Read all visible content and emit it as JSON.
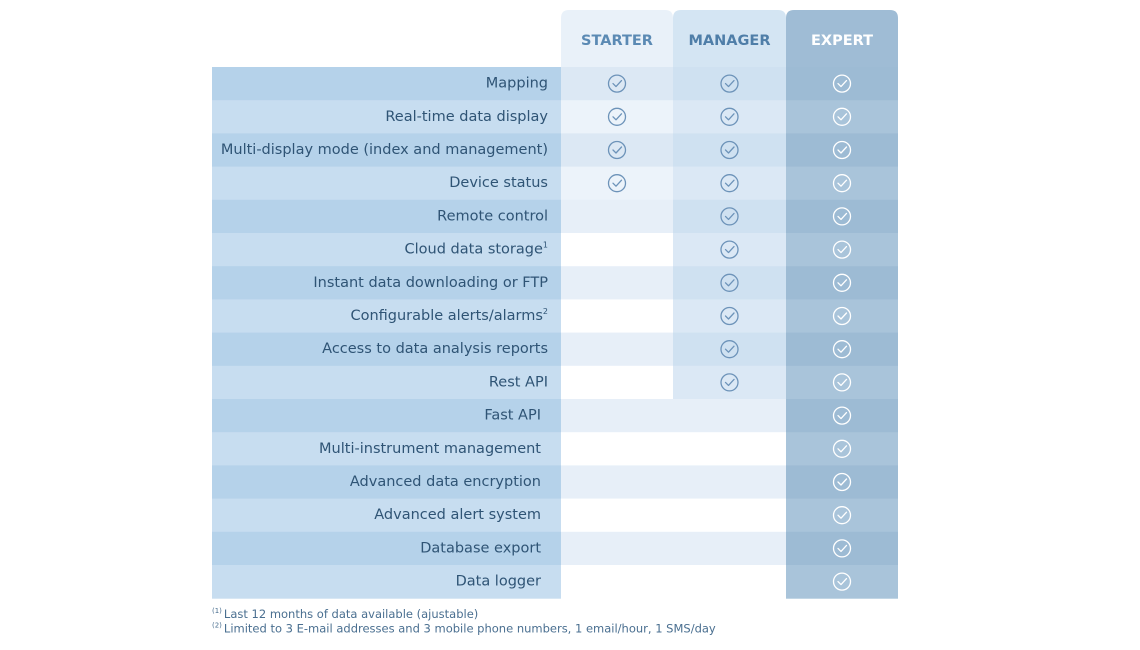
{
  "table": {
    "columns": [
      "STARTER",
      "MANAGER",
      "EXPERT"
    ],
    "rows": [
      {
        "feature": "Mapping",
        "included": [
          true,
          true,
          true
        ]
      },
      {
        "feature": "Real-time data display",
        "included": [
          true,
          true,
          true
        ]
      },
      {
        "feature": "Multi-display mode (index and management)",
        "included": [
          true,
          true,
          true
        ]
      },
      {
        "feature": "Device status",
        "included": [
          true,
          true,
          true
        ]
      },
      {
        "feature": "Remote control",
        "included": [
          false,
          true,
          true
        ]
      },
      {
        "feature": "Cloud data storage",
        "note": "1",
        "included": [
          false,
          true,
          true
        ]
      },
      {
        "feature": "Instant data downloading or FTP",
        "included": [
          false,
          true,
          true
        ]
      },
      {
        "feature": "Configurable alerts/alarms",
        "note": "2",
        "included": [
          false,
          true,
          true
        ]
      },
      {
        "feature": "Access to data analysis reports",
        "included": [
          false,
          true,
          true
        ]
      },
      {
        "feature": "Rest API",
        "included": [
          false,
          true,
          true
        ]
      },
      {
        "feature": "Fast API",
        "included": [
          false,
          false,
          true
        ]
      },
      {
        "feature": "Multi-instrument management",
        "included": [
          false,
          false,
          true
        ]
      },
      {
        "feature": "Advanced data encryption",
        "included": [
          false,
          false,
          true
        ]
      },
      {
        "feature": "Advanced alert system",
        "included": [
          false,
          false,
          true
        ]
      },
      {
        "feature": "Database export",
        "included": [
          false,
          false,
          true
        ]
      },
      {
        "feature": "Data logger",
        "included": [
          false,
          false,
          true
        ]
      }
    ]
  },
  "footnotes": [
    {
      "mark": "(1)",
      "text": "Last 12 months of data available (ajustable)"
    },
    {
      "mark": "(2)",
      "text": "Limited to 3 E-mail addresses and 3 mobile phone numbers, 1 email/hour, 1 SMS/day"
    }
  ]
}
